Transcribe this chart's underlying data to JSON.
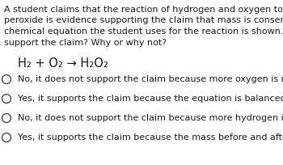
{
  "background_color": "#ffffff",
  "paragraph_lines": [
    "A student claims that the reaction of hydrogen and oxygen to form hydrogen",
    "peroxide is evidence supporting the claim that mass is conserved in a reaction. The",
    "chemical equation the student uses for the reaction is shown. Does this evidence",
    "support the claim? Why or why not?"
  ],
  "equation": "H₂ + O₂ → H₂O₂",
  "options": [
    "No, it does not support the claim because more oxygen is necessary.",
    "Yes, it supports the claim because the equation is balanced.",
    "No, it does not support the claim because more hydrogen is necessary.",
    "Yes, it supports the claim because the mass before and after is the same."
  ],
  "paragraph_fontsize": 8.0,
  "equation_fontsize": 10.5,
  "option_fontsize": 8.0,
  "text_color": "#1a1a1a",
  "circle_color": "#555555"
}
